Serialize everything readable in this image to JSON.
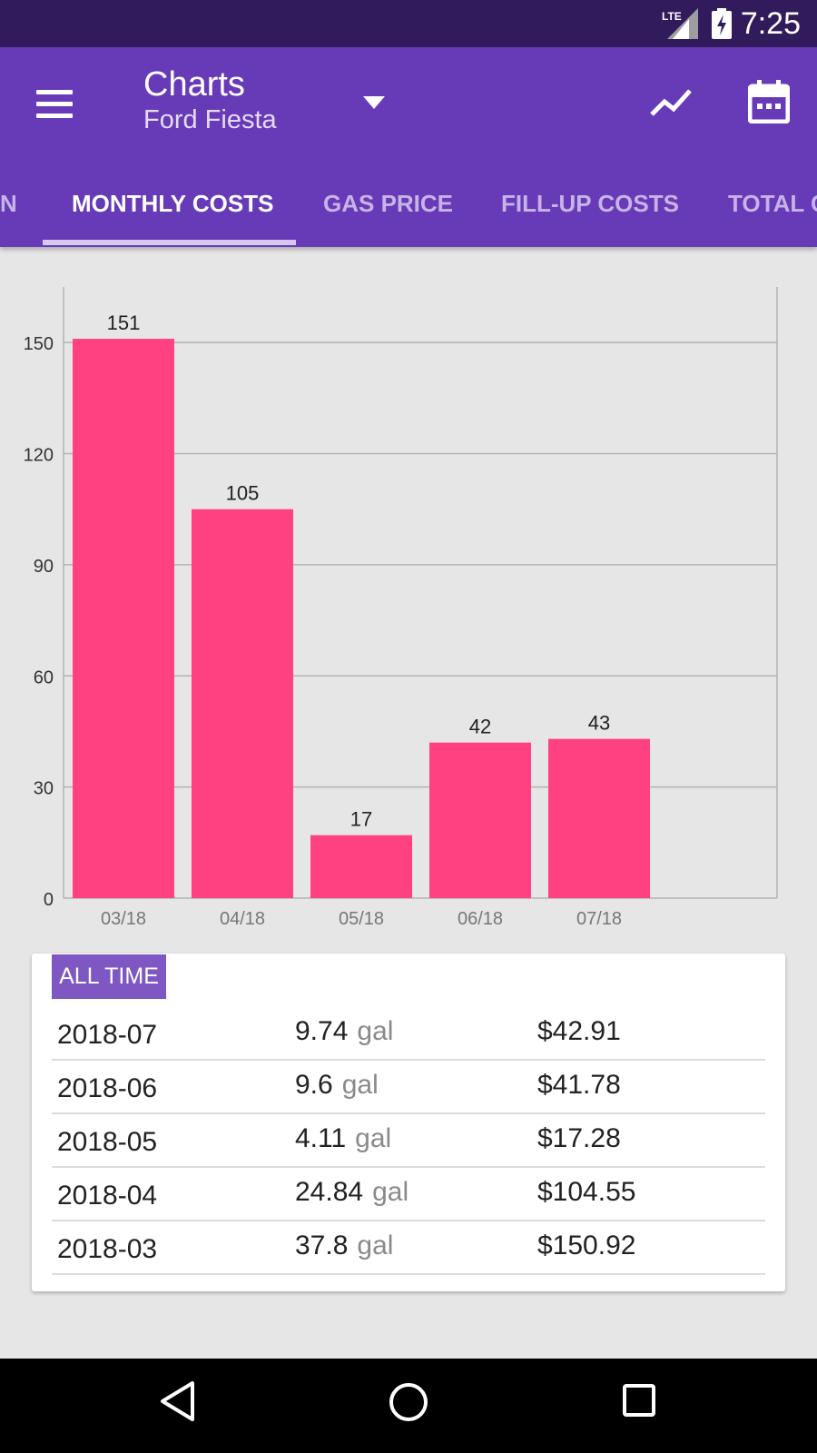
{
  "status_bar": {
    "time": "7:25",
    "network": "LTE",
    "icons": [
      "lte-signal-icon",
      "battery-charging-icon"
    ]
  },
  "app_bar": {
    "title": "Charts",
    "subtitle": "Ford Fiesta",
    "icons": [
      "menu-icon",
      "dropdown-arrow-icon",
      "trend-line-icon",
      "calendar-icon"
    ]
  },
  "tabs": [
    {
      "label": "N",
      "active": false
    },
    {
      "label": "MONTHLY COSTS",
      "active": true
    },
    {
      "label": "GAS PRICE",
      "active": false
    },
    {
      "label": "FILL-UP COSTS",
      "active": false
    },
    {
      "label": "TOTAL C",
      "active": false
    }
  ],
  "chart_data": {
    "type": "bar",
    "categories": [
      "03/18",
      "04/18",
      "05/18",
      "06/18",
      "07/18"
    ],
    "values": [
      151,
      105,
      17,
      42,
      43
    ],
    "value_labels": [
      "151",
      "105",
      "17",
      "42",
      "43"
    ],
    "yticks": [
      0,
      30,
      60,
      90,
      120,
      150
    ],
    "ylim": [
      0,
      165
    ],
    "grid": true,
    "title": "",
    "xlabel": "",
    "ylabel": ""
  },
  "card": {
    "badge": "ALL TIME",
    "rows": [
      {
        "month": "2018-07",
        "volume": "9.74",
        "unit": "gal",
        "cost": "$42.91"
      },
      {
        "month": "2018-06",
        "volume": "9.6",
        "unit": "gal",
        "cost": "$41.78"
      },
      {
        "month": "2018-05",
        "volume": "4.11",
        "unit": "gal",
        "cost": "$17.28"
      },
      {
        "month": "2018-04",
        "volume": "24.84",
        "unit": "gal",
        "cost": "$104.55"
      },
      {
        "month": "2018-03",
        "volume": "37.8",
        "unit": "gal",
        "cost": "$150.92"
      }
    ]
  },
  "colors": {
    "app_bar": "#673ab7",
    "status_bar": "#311b5c",
    "bar": "#ff4081",
    "badge": "#7e57c2"
  }
}
